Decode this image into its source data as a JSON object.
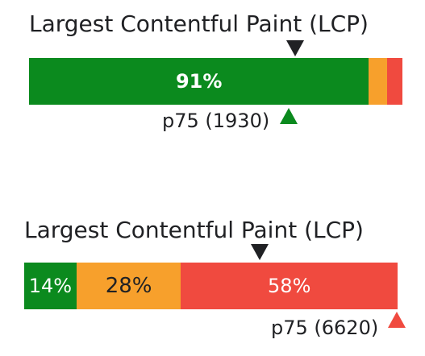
{
  "widgets": [
    {
      "title": "Largest Contentful Paint (LCP)",
      "segments": {
        "good": {
          "label": "91%",
          "fraction": 0.91,
          "color": "#0b8a1e"
        },
        "needs_improvement": {
          "label": "",
          "fraction": 0.05,
          "color": "#f7a02c"
        },
        "poor": {
          "label": "",
          "fraction": 0.04,
          "color": "#f04a3f"
        }
      },
      "p75_label": "p75 (1930)",
      "p75_marker_icon": "triangle-up-green-icon"
    },
    {
      "title": "Largest Contentful Paint (LCP)",
      "segments": {
        "good": {
          "label": "14%",
          "fraction": 0.14,
          "color": "#0b8a1e"
        },
        "needs_improvement": {
          "label": "28%",
          "fraction": 0.28,
          "color": "#f7a02c"
        },
        "poor": {
          "label": "58%",
          "fraction": 0.58,
          "color": "#f04a3f"
        }
      },
      "p75_label": "p75 (6620)",
      "p75_marker_icon": "triangle-up-red-icon"
    }
  ]
}
